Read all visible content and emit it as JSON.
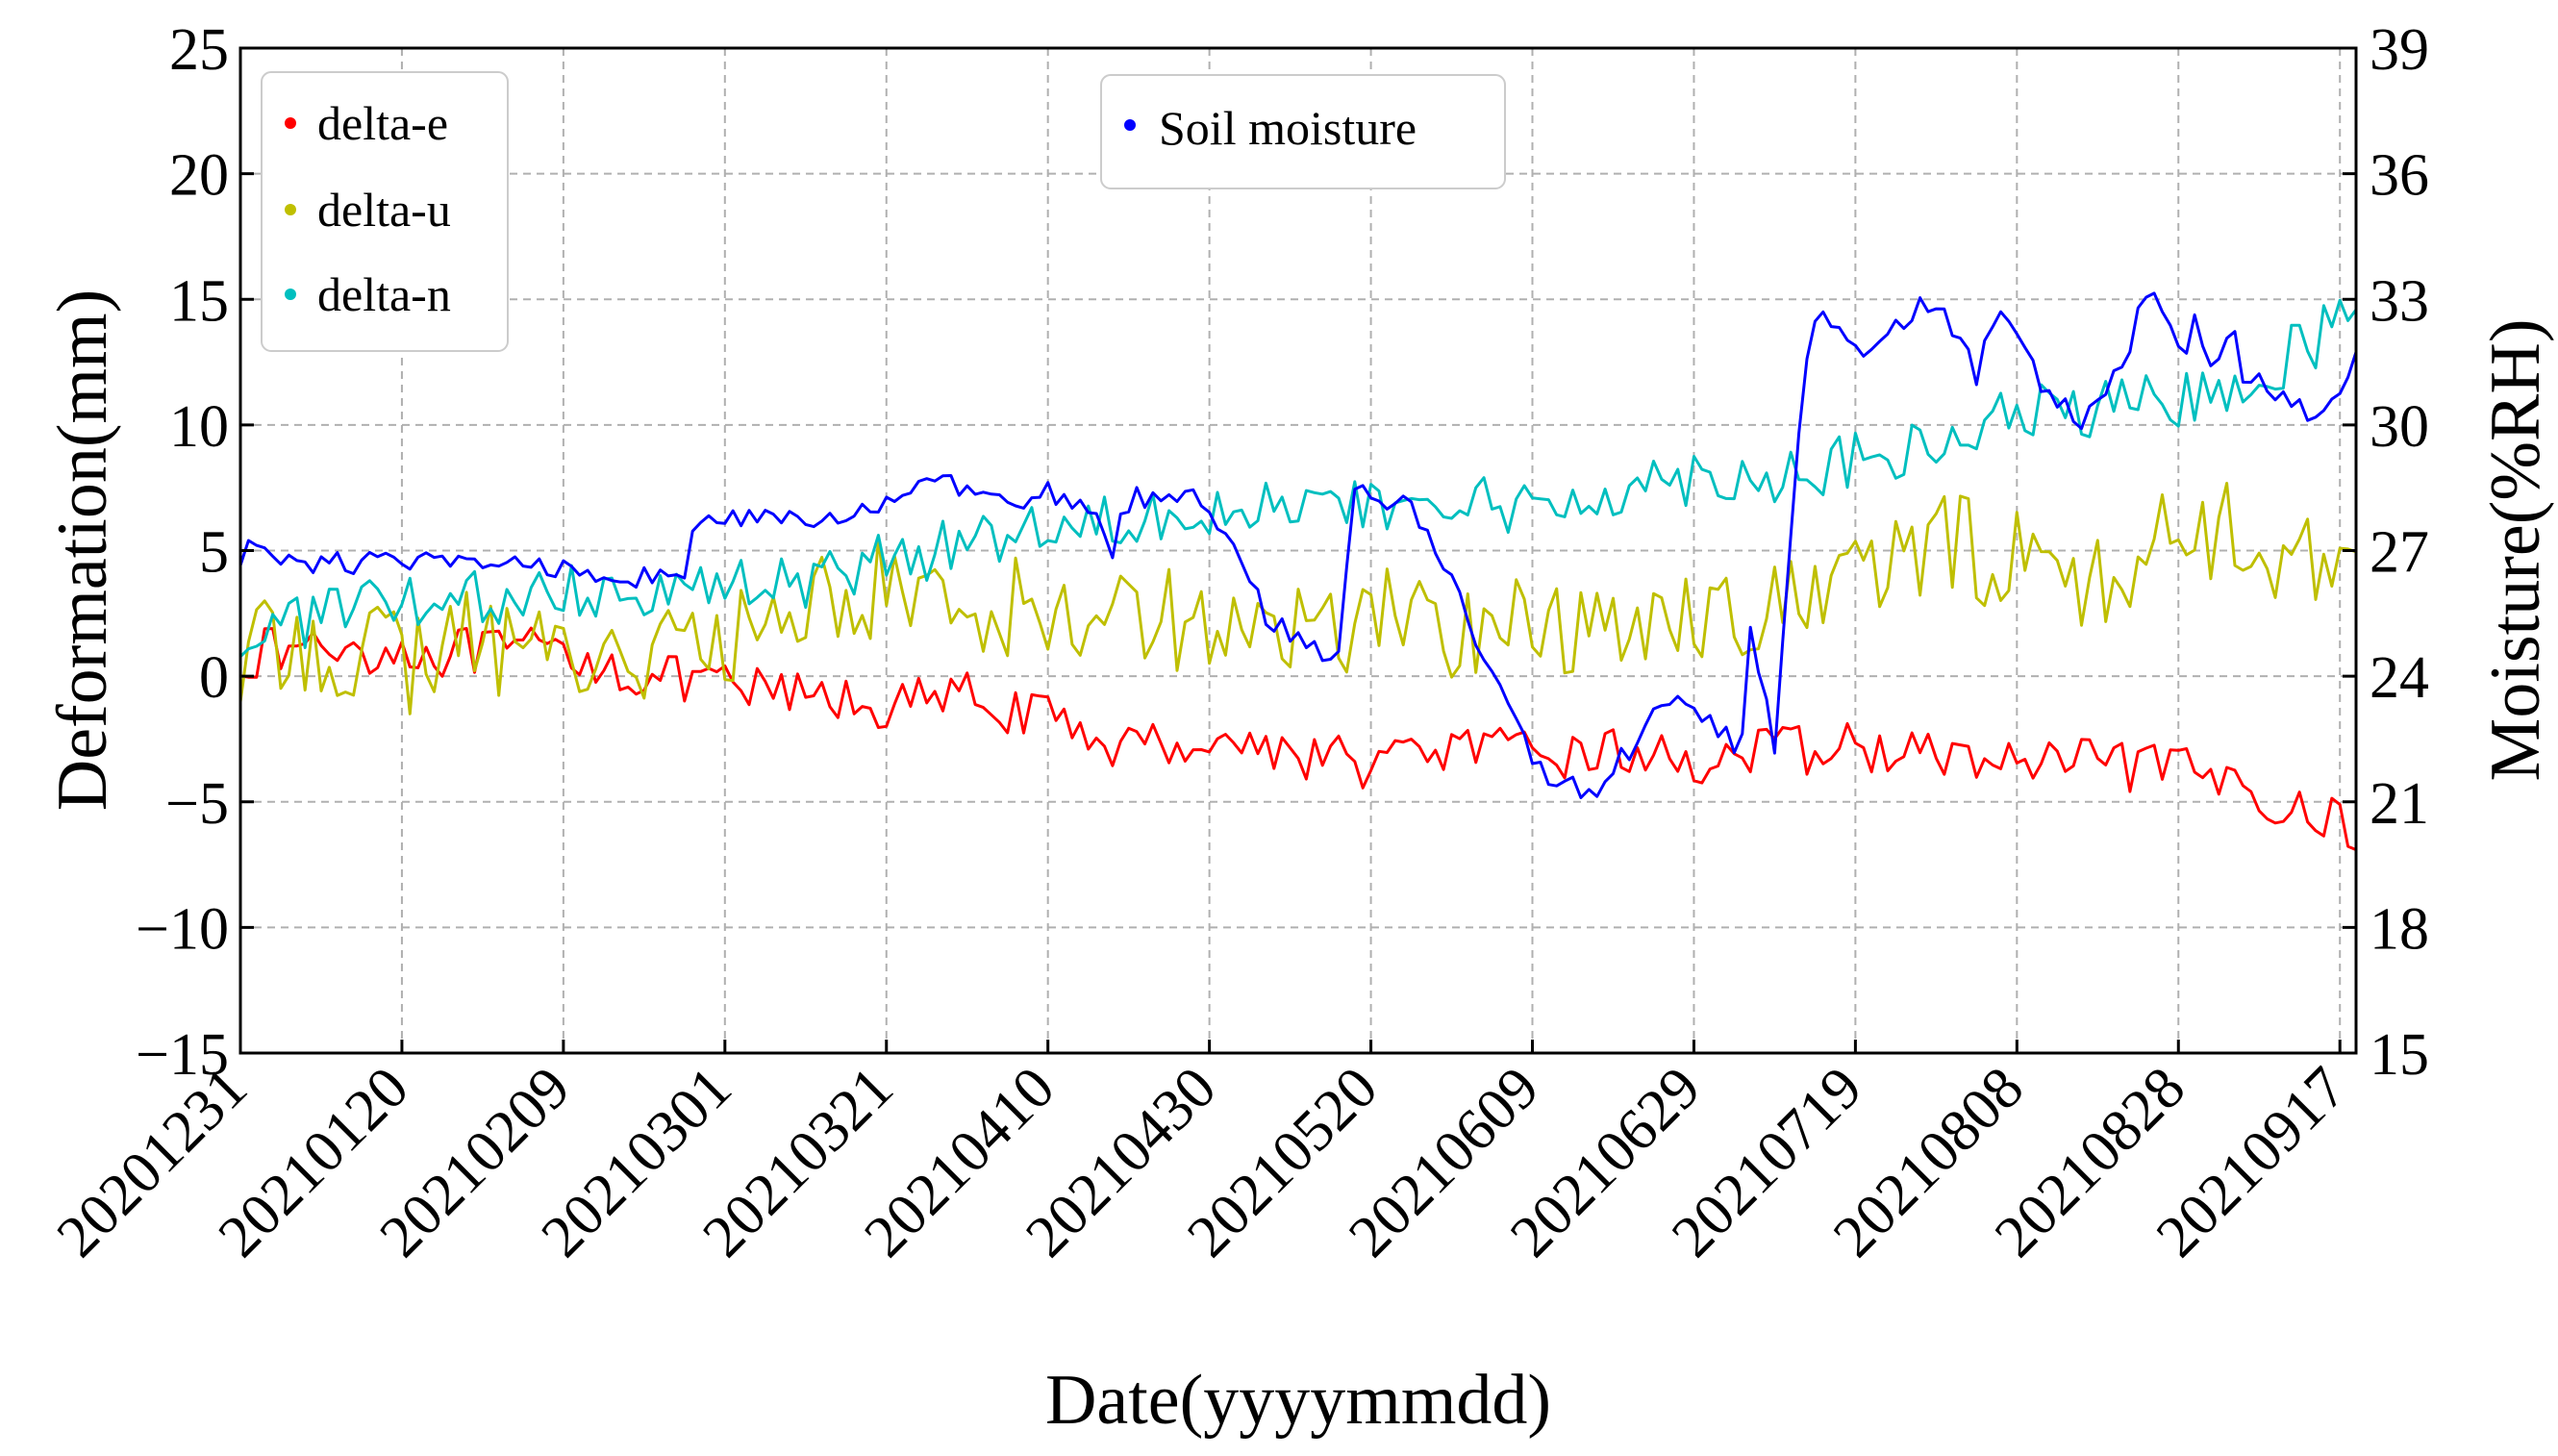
{
  "chart_data": {
    "type": "line",
    "xlabel": "Date(yyyymmdd)",
    "ylabel_left": "Deformation(mm)",
    "ylabel_right": "Moisture(%RH)",
    "ylim_left": [
      -15,
      25
    ],
    "yticks_left": [
      "25",
      "20",
      "15",
      "10",
      "5",
      "0",
      "−5",
      "−10",
      "−15"
    ],
    "ylim_right": [
      15,
      39
    ],
    "yticks_right": [
      "39",
      "36",
      "33",
      "30",
      "27",
      "24",
      "21",
      "18",
      "15"
    ],
    "xlim_days": [
      0,
      262
    ],
    "xtick_labels": [
      "20201231",
      "20210120",
      "20210209",
      "20210301",
      "20210321",
      "20210410",
      "20210430",
      "20210520",
      "20210609",
      "20210629",
      "20210719",
      "20210808",
      "20210828",
      "20210917"
    ],
    "grid": true,
    "legend_left": {
      "placement": "top-left",
      "entries": [
        {
          "label": "delta-e",
          "color": "#ff0000"
        },
        {
          "label": "delta-u",
          "color": "#bfbf00"
        },
        {
          "label": "delta-n",
          "color": "#00bfbf"
        }
      ]
    },
    "legend_right": {
      "placement": "top-center",
      "entries": [
        {
          "label": "Soil moisture",
          "color": "#0000ff"
        }
      ]
    },
    "series": [
      {
        "name": "delta-e",
        "axis": "left",
        "color": "#ff0000",
        "x": [
          0,
          10,
          20,
          30,
          40,
          50,
          60,
          70,
          80,
          90,
          100,
          110,
          120,
          130,
          140,
          150,
          160,
          170,
          180,
          190,
          200,
          210,
          220,
          230,
          240,
          250,
          255,
          262
        ],
        "y": [
          0.8,
          1.2,
          1.0,
          0.9,
          1.0,
          0.0,
          -0.5,
          -0.8,
          -1.2,
          -0.8,
          -1.8,
          -2.8,
          -2.5,
          -3.0,
          -3.5,
          -2.8,
          -3.2,
          -3.0,
          -3.4,
          -3.0,
          -2.8,
          -3.2,
          -3.5,
          -3.5,
          -3.8,
          -4.5,
          -5.5,
          -6.0
        ],
        "amp": 1.0
      },
      {
        "name": "delta-u",
        "axis": "left",
        "color": "#bfbf00",
        "x": [
          0,
          10,
          20,
          30,
          40,
          50,
          60,
          70,
          80,
          90,
          100,
          110,
          120,
          130,
          140,
          150,
          160,
          170,
          180,
          190,
          200,
          210,
          220,
          230,
          240,
          250,
          255,
          262
        ],
        "y": [
          0.5,
          1.5,
          0.5,
          1.5,
          1.0,
          1.0,
          1.0,
          3.0,
          3.5,
          3.0,
          2.5,
          3.0,
          2.0,
          1.5,
          2.5,
          2.0,
          2.0,
          1.5,
          3.0,
          2.5,
          4.0,
          5.0,
          5.0,
          3.5,
          6.0,
          5.5,
          4.5,
          5.5
        ],
        "amp": 2.2
      },
      {
        "name": "delta-n",
        "axis": "left",
        "color": "#00bfbf",
        "x": [
          0,
          10,
          20,
          30,
          40,
          50,
          60,
          70,
          80,
          90,
          100,
          110,
          120,
          130,
          140,
          150,
          160,
          170,
          180,
          190,
          200,
          210,
          220,
          230,
          240,
          250,
          255,
          262
        ],
        "y": [
          1.5,
          2.5,
          2.8,
          3.0,
          3.5,
          3.6,
          3.5,
          3.8,
          4.5,
          5.5,
          6.0,
          6.5,
          6.8,
          6.8,
          6.5,
          7.0,
          6.5,
          7.5,
          8.0,
          8.0,
          8.5,
          9.0,
          10.5,
          10.5,
          11.0,
          12.0,
          13.0,
          14.5
        ],
        "amp": 1.2
      },
      {
        "name": "Soil moisture",
        "axis": "right",
        "color": "#0000ff",
        "x": [
          0,
          1,
          5,
          10,
          20,
          30,
          40,
          50,
          55,
          56,
          60,
          70,
          75,
          77,
          80,
          85,
          90,
          95,
          100,
          105,
          108,
          110,
          115,
          120,
          123,
          127,
          130,
          132,
          136,
          138,
          145,
          150,
          155,
          160,
          163,
          166,
          169,
          171,
          175,
          177,
          178,
          182,
          184,
          186,
          187,
          190,
          193,
          195,
          198,
          201,
          205,
          210,
          215,
          218,
          223,
          228,
          233,
          236,
          241,
          242,
          244,
          247,
          248,
          251,
          254,
          258,
          262
        ],
        "y": [
          26.8,
          27.0,
          26.9,
          26.7,
          26.7,
          26.7,
          26.6,
          26.4,
          26.2,
          27.5,
          27.8,
          27.6,
          27.9,
          28.0,
          28.2,
          28.5,
          28.5,
          28.0,
          28.4,
          28.0,
          27.0,
          28.2,
          28.5,
          28.0,
          27.0,
          25.5,
          25.0,
          24.8,
          24.4,
          28.5,
          28.0,
          26.5,
          24.0,
          22.0,
          21.5,
          21.2,
          21.4,
          22.0,
          23.2,
          23.5,
          23.4,
          22.8,
          22.5,
          22.4,
          25.2,
          22.3,
          30.0,
          32.6,
          32.5,
          31.4,
          32.5,
          32.9,
          31.2,
          32.8,
          31.0,
          30.0,
          31.3,
          33.2,
          31.5,
          32.5,
          31.5,
          32.0,
          31.2,
          31.0,
          30.4,
          30.2,
          31.8
        ],
        "amp": 0.3
      }
    ]
  }
}
